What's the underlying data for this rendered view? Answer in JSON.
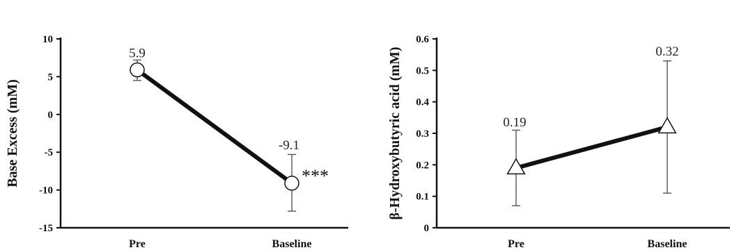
{
  "chart_data": [
    {
      "type": "line",
      "ylabel": "Base Excess (mM)",
      "xlabel": "",
      "categories": [
        "Pre",
        "Baseline"
      ],
      "ylim": [
        -15,
        10
      ],
      "yticks": [
        10,
        5,
        0,
        -5,
        -10,
        -15
      ],
      "marker": "circle",
      "series": [
        {
          "values": [
            5.9,
            -9.1
          ],
          "error_low": [
            4.5,
            -12.8
          ],
          "error_high": [
            7.2,
            -5.3
          ],
          "data_labels": [
            "5.9",
            "-9.1"
          ]
        }
      ],
      "annotations": [
        {
          "category": "Baseline",
          "text": "***"
        }
      ],
      "grid": false
    },
    {
      "type": "line",
      "ylabel": "β-Hydroxybutyric acid (mM)",
      "xlabel": "",
      "categories": [
        "Pre",
        "Baseline"
      ],
      "ylim": [
        0,
        0.6
      ],
      "yticks": [
        0.6,
        0.5,
        0.4,
        0.3,
        0.2,
        0.1,
        0
      ],
      "marker": "triangle",
      "series": [
        {
          "values": [
            0.19,
            0.32
          ],
          "error_low": [
            0.07,
            0.11
          ],
          "error_high": [
            0.31,
            0.53
          ],
          "data_labels": [
            "0.19",
            "0.32"
          ]
        }
      ],
      "annotations": [],
      "grid": false
    }
  ],
  "colors": {
    "line": "#111111",
    "marker_fill": "#ffffff",
    "error_bar": "#555555"
  }
}
